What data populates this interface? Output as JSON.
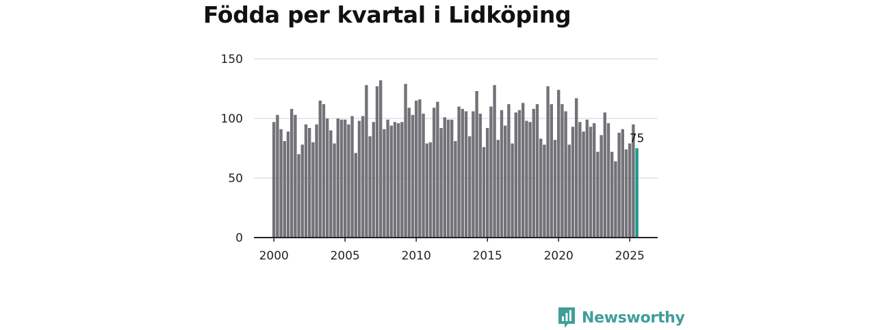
{
  "page": {
    "title": "Födda per kvartal i Lidköping"
  },
  "brand": {
    "name": "Newsworthy",
    "color": "#3f9e9a",
    "icon": "bar-chart-speech-icon"
  },
  "colors": {
    "bar": "#737278",
    "highlight": "#1a9a91",
    "grid": "#d9d9d9",
    "axis": "#222222"
  },
  "chart_data": {
    "type": "bar",
    "title": "Födda per kvartal i Lidköping",
    "xlabel": "",
    "ylabel": "",
    "ylim": [
      0,
      150
    ],
    "yticks": [
      0,
      50,
      100,
      150
    ],
    "xticks": [
      2000,
      2005,
      2010,
      2015,
      2020,
      2025
    ],
    "start": {
      "year": 2000,
      "quarter": 1
    },
    "values": [
      97,
      103,
      91,
      81,
      89,
      108,
      103,
      70,
      78,
      95,
      92,
      80,
      95,
      115,
      112,
      100,
      90,
      79,
      100,
      99,
      99,
      95,
      102,
      71,
      98,
      102,
      128,
      85,
      97,
      127,
      132,
      91,
      99,
      94,
      97,
      96,
      97,
      129,
      109,
      103,
      115,
      116,
      104,
      79,
      80,
      109,
      114,
      92,
      101,
      99,
      99,
      81,
      110,
      108,
      106,
      85,
      106,
      123,
      104,
      76,
      92,
      110,
      128,
      82,
      107,
      94,
      112,
      79,
      105,
      107,
      113,
      98,
      97,
      108,
      112,
      83,
      78,
      127,
      112,
      82,
      124,
      112,
      106,
      78,
      93,
      117,
      97,
      89,
      99,
      93,
      96,
      72,
      86,
      105,
      96,
      72,
      64,
      88,
      91,
      74,
      79,
      95,
      75
    ],
    "highlight_index": 102,
    "data_labels": [
      {
        "index": 102,
        "text": "75"
      }
    ]
  }
}
